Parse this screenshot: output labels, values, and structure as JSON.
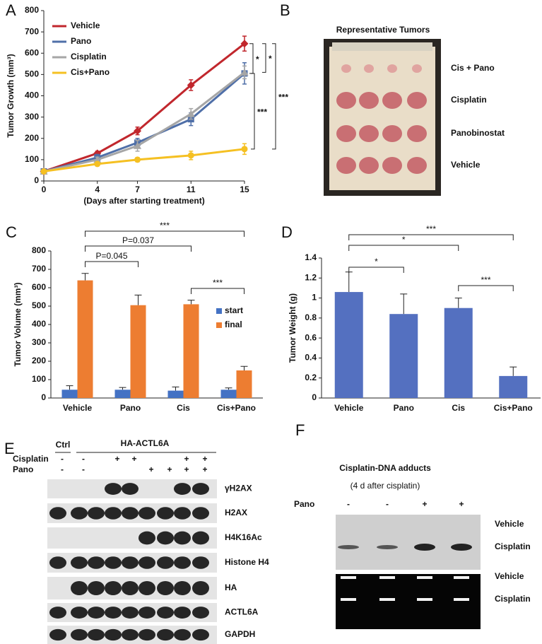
{
  "chart_data": [
    {
      "panel": "A",
      "type": "line",
      "y_label": "Tumor Growth (mm³)",
      "x_label": "(Days after starting treatment)",
      "x": [
        0,
        4,
        7,
        11,
        15
      ],
      "xlim": [
        0,
        15
      ],
      "xticks": [
        0,
        4,
        7,
        11,
        15
      ],
      "ylim": [
        0,
        800
      ],
      "yticks": [
        0,
        100,
        200,
        300,
        400,
        500,
        600,
        700,
        800
      ],
      "legend": "upper left",
      "series": [
        {
          "name": "Vehicle",
          "color": "#c1272d",
          "values": [
            45,
            130,
            235,
            450,
            645
          ],
          "errors": [
            5,
            10,
            18,
            25,
            35
          ]
        },
        {
          "name": "Pano",
          "color": "#4f6fa8",
          "values": [
            45,
            110,
            180,
            290,
            505
          ],
          "errors": [
            4,
            15,
            20,
            30,
            50
          ]
        },
        {
          "name": "Cisplatin",
          "color": "#a6a6a6",
          "values": [
            45,
            100,
            165,
            315,
            510
          ],
          "errors": [
            4,
            12,
            25,
            25,
            30
          ]
        },
        {
          "name": "Cis+Pano",
          "color": "#f5c022",
          "values": [
            45,
            80,
            100,
            120,
            150
          ],
          "errors": [
            4,
            8,
            10,
            20,
            25
          ]
        }
      ],
      "annotations": [
        "*",
        "*",
        "***",
        "***"
      ]
    },
    {
      "panel": "C",
      "type": "bar",
      "y_label": "Tumor Volume (mm³)",
      "categories": [
        "Vehicle",
        "Pano",
        "Cis",
        "Cis+Pano"
      ],
      "ylim": [
        0,
        800
      ],
      "yticks": [
        0,
        100,
        200,
        300,
        400,
        500,
        600,
        700,
        800
      ],
      "legend": "right",
      "series": [
        {
          "name": "start",
          "color": "#4472c4",
          "values": [
            45,
            45,
            40,
            45
          ],
          "errors": [
            22,
            12,
            20,
            10
          ]
        },
        {
          "name": "final",
          "color": "#ed7d31",
          "values": [
            640,
            505,
            510,
            150
          ],
          "errors": [
            38,
            55,
            22,
            22
          ]
        }
      ],
      "annotations": [
        "***",
        "P=0.037",
        "P=0.045",
        "***"
      ]
    },
    {
      "panel": "D",
      "type": "bar",
      "y_label": "Tumor Weight (g)",
      "categories": [
        "Vehicle",
        "Pano",
        "Cis",
        "Cis+Pano"
      ],
      "ylim": [
        0,
        1.4
      ],
      "yticks": [
        0,
        0.2,
        0.4,
        0.6,
        0.8,
        1,
        1.2,
        1.4
      ],
      "color": "#5470c0",
      "values": [
        1.06,
        0.84,
        0.9,
        0.22
      ],
      "errors": [
        0.2,
        0.2,
        0.1,
        0.09
      ],
      "annotations": [
        "***",
        "*",
        "*",
        "***"
      ]
    }
  ],
  "tumors": {
    "panel": "B",
    "title": "Representative Tumors",
    "rows": [
      "Cis + Pano",
      "Cisplatin",
      "Panobinostat",
      "Vehicle"
    ]
  },
  "western_blot": {
    "panel": "E",
    "control": "Ctrl",
    "construct": "HA-ACTL6A",
    "treatments": [
      {
        "name": "Cisplatin",
        "lanes": [
          "-",
          "-",
          null,
          "+",
          "+",
          null,
          null,
          "+",
          "+"
        ]
      },
      {
        "name": "Pano",
        "lanes": [
          "-",
          "-",
          null,
          null,
          null,
          "+",
          "+",
          "+",
          "+"
        ]
      }
    ],
    "blots": [
      "γH2AX",
      "H2AX",
      "H4K16Ac",
      "Histone H4",
      "HA",
      "ACTL6A",
      "GAPDH"
    ]
  },
  "adducts": {
    "panel": "F",
    "title": "Cisplatin-DNA adducts",
    "subtitle": "(4 d after cisplatin)",
    "treatment": {
      "name": "Pano",
      "lanes": [
        "-",
        "-",
        "+",
        "+"
      ]
    },
    "rows": [
      "Vehicle",
      "Cisplatin",
      "Vehicle",
      "Cisplatin"
    ]
  }
}
